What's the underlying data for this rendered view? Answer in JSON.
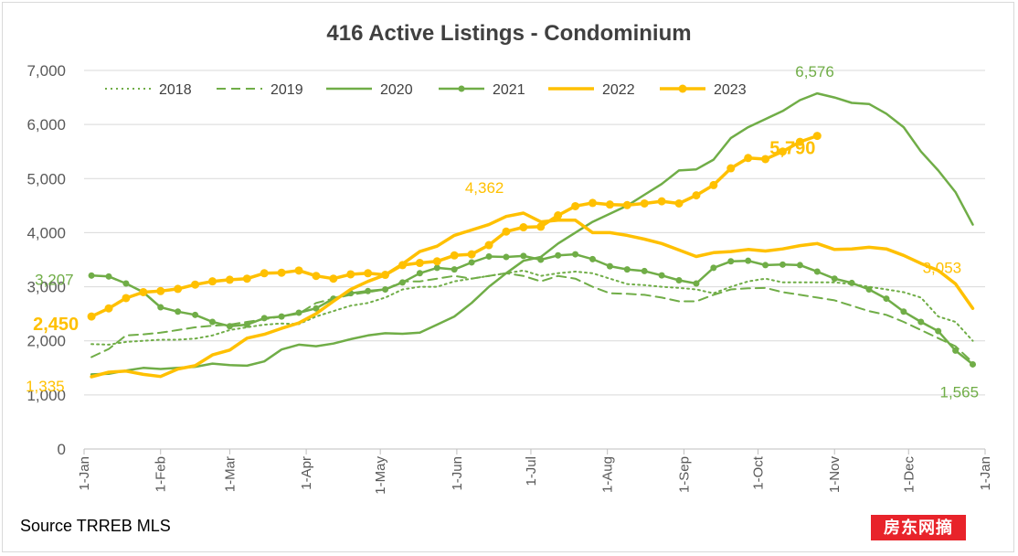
{
  "badge_text": "房东网摘",
  "source_text": "Source TRREB MLS",
  "chart_data": {
    "type": "line",
    "title": "416 Active Listings - Condominium",
    "xlabel": "",
    "ylabel": "",
    "ylim": [
      0,
      7000
    ],
    "yticks": [
      0,
      1000,
      2000,
      3000,
      4000,
      5000,
      6000,
      7000
    ],
    "ytick_labels": [
      "0",
      "1,000",
      "2,000",
      "3,000",
      "4,000",
      "5,000",
      "6,000",
      "7,000"
    ],
    "x_unit": "day of year",
    "xlim": [
      1,
      366
    ],
    "xticks": [
      1,
      32,
      60,
      91,
      121,
      152,
      182,
      213,
      244,
      274,
      305,
      335,
      366
    ],
    "xtick_labels": [
      "1-Jan",
      "1-Feb",
      "1-Mar",
      "1-Apr",
      "1-May",
      "1-Jun",
      "1-Jul",
      "1-Aug",
      "1-Sep",
      "1-Oct",
      "1-Nov",
      "1-Dec",
      "1-Jan"
    ],
    "grid": "horizontal",
    "legend": "top",
    "series": [
      {
        "name": "2018",
        "color": "#70ad47",
        "style": "dotted",
        "width": 2,
        "marker": false,
        "x": [
          4,
          11,
          18,
          25,
          32,
          39,
          46,
          53,
          60,
          67,
          74,
          81,
          88,
          95,
          102,
          109,
          116,
          123,
          130,
          137,
          144,
          151,
          158,
          165,
          172,
          179,
          186,
          193,
          200,
          207,
          214,
          221,
          228,
          235,
          242,
          249,
          256,
          263,
          270,
          277,
          284,
          291,
          298,
          305,
          312,
          319,
          326,
          333,
          340,
          347,
          354,
          361
        ],
        "y": [
          1940,
          1930,
          1980,
          2000,
          2020,
          2020,
          2040,
          2100,
          2200,
          2250,
          2300,
          2320,
          2310,
          2450,
          2550,
          2650,
          2700,
          2800,
          2950,
          3000,
          3000,
          3100,
          3150,
          3200,
          3250,
          3300,
          3200,
          3250,
          3280,
          3250,
          3150,
          3050,
          3030,
          3000,
          2980,
          2950,
          2880,
          3000,
          3100,
          3150,
          3080,
          3080,
          3080,
          3080,
          3050,
          3000,
          2950,
          2900,
          2800,
          2450,
          2350,
          2000
        ]
      },
      {
        "name": "2019",
        "color": "#70ad47",
        "style": "dashed",
        "width": 2,
        "marker": false,
        "x": [
          4,
          11,
          18,
          25,
          32,
          39,
          46,
          53,
          60,
          67,
          74,
          81,
          88,
          95,
          102,
          109,
          116,
          123,
          130,
          137,
          144,
          151,
          158,
          165,
          172,
          179,
          186,
          193,
          200,
          207,
          214,
          221,
          228,
          235,
          242,
          249,
          256,
          263,
          270,
          277,
          284,
          291,
          298,
          305,
          312,
          319,
          326,
          333,
          340,
          347,
          354,
          361
        ],
        "y": [
          1700,
          1850,
          2100,
          2120,
          2150,
          2200,
          2250,
          2280,
          2300,
          2350,
          2400,
          2450,
          2500,
          2700,
          2780,
          2850,
          2900,
          2950,
          3100,
          3100,
          3150,
          3200,
          3150,
          3200,
          3250,
          3200,
          3100,
          3200,
          3150,
          3000,
          2880,
          2870,
          2850,
          2800,
          2730,
          2730,
          2850,
          2950,
          2970,
          2980,
          2900,
          2850,
          2800,
          2750,
          2650,
          2550,
          2480,
          2350,
          2200,
          2050,
          1900,
          1600
        ]
      },
      {
        "name": "2020",
        "color": "#70ad47",
        "style": "solid",
        "width": 2.5,
        "marker": false,
        "x": [
          4,
          11,
          18,
          25,
          32,
          39,
          46,
          53,
          60,
          67,
          74,
          81,
          88,
          95,
          102,
          109,
          116,
          123,
          130,
          137,
          144,
          151,
          158,
          165,
          172,
          179,
          186,
          193,
          200,
          207,
          214,
          221,
          228,
          235,
          242,
          249,
          256,
          263,
          270,
          277,
          284,
          291,
          298,
          305,
          312,
          319,
          326,
          333,
          340,
          347,
          354,
          361
        ],
        "y": [
          1380,
          1390,
          1450,
          1500,
          1480,
          1500,
          1520,
          1580,
          1550,
          1540,
          1620,
          1840,
          1930,
          1900,
          1950,
          2030,
          2100,
          2140,
          2130,
          2150,
          2300,
          2450,
          2700,
          3000,
          3250,
          3480,
          3550,
          3800,
          4000,
          4200,
          4350,
          4500,
          4700,
          4900,
          5150,
          5170,
          5350,
          5750,
          5950,
          6100,
          6250,
          6450,
          6576,
          6500,
          6400,
          6380,
          6200,
          5950,
          5500,
          5150,
          4750,
          4150
        ]
      },
      {
        "name": "2021",
        "color": "#70ad47",
        "style": "solid",
        "width": 2.5,
        "marker": true,
        "x": [
          4,
          11,
          18,
          25,
          32,
          39,
          46,
          53,
          60,
          67,
          74,
          81,
          88,
          95,
          102,
          109,
          116,
          123,
          130,
          137,
          144,
          151,
          158,
          165,
          172,
          179,
          186,
          193,
          200,
          207,
          214,
          221,
          228,
          235,
          242,
          249,
          256,
          263,
          270,
          277,
          284,
          291,
          298,
          305,
          312,
          319,
          326,
          333,
          340,
          347,
          354,
          361
        ],
        "y": [
          3207,
          3190,
          3060,
          2900,
          2620,
          2540,
          2480,
          2350,
          2270,
          2300,
          2420,
          2450,
          2520,
          2600,
          2780,
          2880,
          2920,
          2950,
          3080,
          3250,
          3350,
          3320,
          3450,
          3560,
          3550,
          3570,
          3500,
          3580,
          3600,
          3510,
          3380,
          3320,
          3290,
          3210,
          3120,
          3060,
          3350,
          3470,
          3480,
          3400,
          3410,
          3400,
          3280,
          3150,
          3070,
          2950,
          2780,
          2540,
          2350,
          2180,
          1820,
          1565
        ]
      },
      {
        "name": "2022",
        "color": "#ffc000",
        "style": "solid",
        "width": 3.5,
        "marker": false,
        "x": [
          4,
          11,
          18,
          25,
          32,
          39,
          46,
          53,
          60,
          67,
          74,
          81,
          88,
          95,
          102,
          109,
          116,
          123,
          130,
          137,
          144,
          151,
          158,
          165,
          172,
          179,
          186,
          193,
          200,
          207,
          214,
          221,
          228,
          235,
          242,
          249,
          256,
          263,
          270,
          277,
          284,
          291,
          298,
          305,
          312,
          319,
          326,
          333,
          340,
          347,
          354,
          361
        ],
        "y": [
          1335,
          1420,
          1440,
          1380,
          1340,
          1480,
          1540,
          1740,
          1830,
          2050,
          2120,
          2230,
          2330,
          2500,
          2730,
          2950,
          3100,
          3220,
          3420,
          3650,
          3750,
          3950,
          4050,
          4150,
          4300,
          4362,
          4200,
          4230,
          4230,
          4000,
          4000,
          3950,
          3880,
          3800,
          3680,
          3560,
          3630,
          3650,
          3690,
          3660,
          3700,
          3760,
          3800,
          3690,
          3700,
          3730,
          3700,
          3580,
          3430,
          3300,
          3053,
          2600
        ]
      },
      {
        "name": "2023",
        "color": "#ffc000",
        "style": "solid",
        "width": 3.5,
        "marker": true,
        "x": [
          4,
          11,
          18,
          25,
          32,
          39,
          46,
          53,
          60,
          67,
          74,
          81,
          88,
          95,
          102,
          109,
          116,
          123,
          130,
          137,
          144,
          151,
          158,
          165,
          172,
          179,
          186,
          193,
          200,
          207,
          214,
          221,
          228,
          235,
          242,
          249,
          256,
          263,
          270,
          277,
          284,
          291,
          298
        ],
        "y": [
          2450,
          2600,
          2790,
          2900,
          2920,
          2960,
          3040,
          3100,
          3130,
          3150,
          3250,
          3260,
          3300,
          3200,
          3150,
          3230,
          3250,
          3220,
          3400,
          3440,
          3470,
          3580,
          3600,
          3770,
          4020,
          4100,
          4110,
          4320,
          4490,
          4550,
          4520,
          4510,
          4540,
          4580,
          4540,
          4690,
          4880,
          5190,
          5380,
          5360,
          5500,
          5680,
          5790
        ]
      }
    ],
    "annotations": [
      {
        "text": "6,576",
        "series": "2020",
        "x": 298,
        "y": 6576,
        "color": "#70ad47",
        "bold": false
      },
      {
        "text": "5,790",
        "series": "2023",
        "x": 298,
        "y": 5790,
        "color": "#ffc000",
        "bold": true
      },
      {
        "text": "4,362",
        "series": "2022",
        "x": 179,
        "y": 4362,
        "color": "#ffc000",
        "bold": false
      },
      {
        "text": "3,207",
        "series": "2021",
        "x": 4,
        "y": 3207,
        "color": "#70ad47",
        "bold": false
      },
      {
        "text": "2,450",
        "series": "2023",
        "x": 4,
        "y": 2450,
        "color": "#ffc000",
        "bold": true
      },
      {
        "text": "1,335",
        "series": "2022",
        "x": 4,
        "y": 1335,
        "color": "#ffc000",
        "bold": false
      },
      {
        "text": "3,053",
        "series": "2022",
        "x": 354,
        "y": 3053,
        "color": "#ffc000",
        "bold": false
      },
      {
        "text": "1,565",
        "series": "2021",
        "x": 361,
        "y": 1565,
        "color": "#70ad47",
        "bold": false
      }
    ]
  }
}
